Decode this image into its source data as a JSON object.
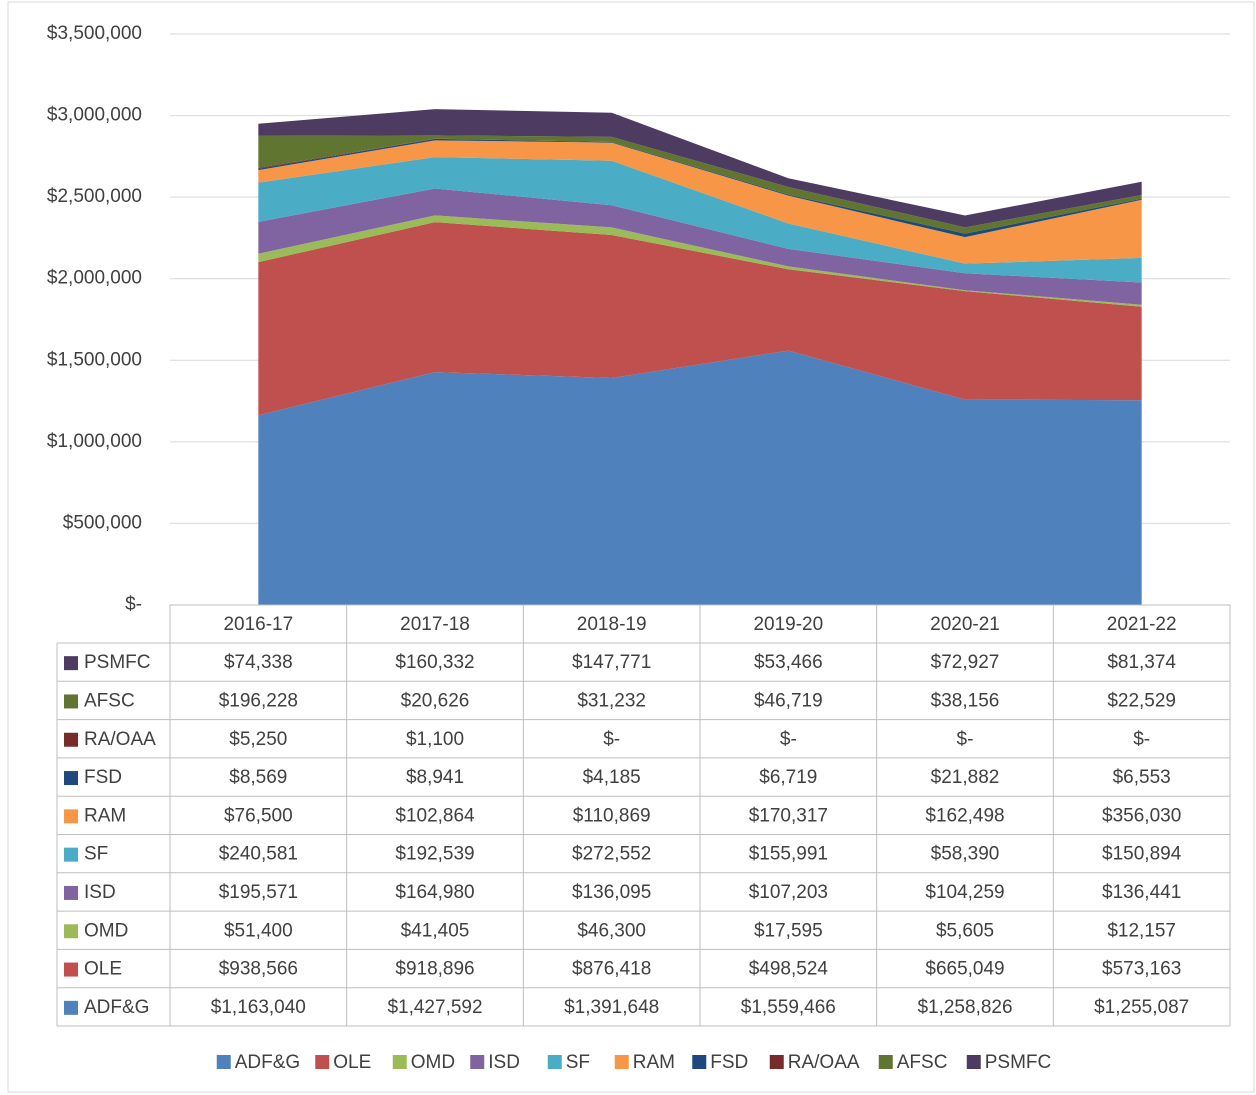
{
  "chart_data": {
    "type": "area",
    "stacked": true,
    "grid": true,
    "legend": "bottom",
    "categories": [
      "2016-17",
      "2017-18",
      "2018-19",
      "2019-20",
      "2020-21",
      "2021-22"
    ],
    "ylim": [
      0,
      3500000
    ],
    "yticks": [
      {
        "value": 0,
        "label": "$-"
      },
      {
        "value": 500000,
        "label": "$500,000"
      },
      {
        "value": 1000000,
        "label": "$1,000,000"
      },
      {
        "value": 1500000,
        "label": "$1,500,000"
      },
      {
        "value": 2000000,
        "label": "$2,000,000"
      },
      {
        "value": 2500000,
        "label": "$2,500,000"
      },
      {
        "value": 3000000,
        "label": "$3,000,000"
      },
      {
        "value": 3500000,
        "label": "$3,500,000"
      }
    ],
    "series": [
      {
        "name": "ADF&G",
        "color": "#4f81bd",
        "values": [
          1163040,
          1427592,
          1391648,
          1559466,
          1258826,
          1255087
        ],
        "value_labels": [
          "$1,163,040",
          "$1,427,592",
          "$1,391,648",
          "$1,559,466",
          "$1,258,826",
          "$1,255,087"
        ]
      },
      {
        "name": "OLE",
        "color": "#c0504d",
        "values": [
          938566,
          918896,
          876418,
          498524,
          665049,
          573163
        ],
        "value_labels": [
          "$938,566",
          "$918,896",
          "$876,418",
          "$498,524",
          "$665,049",
          "$573,163"
        ]
      },
      {
        "name": "OMD",
        "color": "#9bbb59",
        "values": [
          51400,
          41405,
          46300,
          17595,
          5605,
          12157
        ],
        "value_labels": [
          "$51,400",
          "$41,405",
          "$46,300",
          "$17,595",
          "$5,605",
          "$12,157"
        ]
      },
      {
        "name": "ISD",
        "color": "#8064a2",
        "values": [
          195571,
          164980,
          136095,
          107203,
          104259,
          136441
        ],
        "value_labels": [
          "$195,571",
          "$164,980",
          "$136,095",
          "$107,203",
          "$104,259",
          "$136,441"
        ]
      },
      {
        "name": "SF",
        "color": "#4bacc6",
        "values": [
          240581,
          192539,
          272552,
          155991,
          58390,
          150894
        ],
        "value_labels": [
          "$240,581",
          "$192,539",
          "$272,552",
          "$155,991",
          "$58,390",
          "$150,894"
        ]
      },
      {
        "name": "RAM",
        "color": "#f79646",
        "values": [
          76500,
          102864,
          110869,
          170317,
          162498,
          356030
        ],
        "value_labels": [
          "$76,500",
          "$102,864",
          "$110,869",
          "$170,317",
          "$162,498",
          "$356,030"
        ]
      },
      {
        "name": "FSD",
        "color": "#1f497d",
        "values": [
          8569,
          8941,
          4185,
          6719,
          21882,
          6553
        ],
        "value_labels": [
          "$8,569",
          "$8,941",
          "$4,185",
          "$6,719",
          "$21,882",
          "$6,553"
        ]
      },
      {
        "name": "RA/OAA",
        "color": "#772c2a",
        "values": [
          5250,
          1100,
          0,
          0,
          0,
          0
        ],
        "value_labels": [
          "$5,250",
          "$1,100",
          "$-",
          "$-",
          "$-",
          "$-"
        ]
      },
      {
        "name": "AFSC",
        "color": "#5f7530",
        "values": [
          196228,
          20626,
          31232,
          46719,
          38156,
          22529
        ],
        "value_labels": [
          "$196,228",
          "$20,626",
          "$31,232",
          "$46,719",
          "$38,156",
          "$22,529"
        ]
      },
      {
        "name": "PSMFC",
        "color": "#4d3b62",
        "values": [
          74338,
          160332,
          147771,
          53466,
          72927,
          81374
        ],
        "value_labels": [
          "$74,338",
          "$160,332",
          "$147,771",
          "$53,466",
          "$72,927",
          "$81,374"
        ]
      }
    ]
  }
}
